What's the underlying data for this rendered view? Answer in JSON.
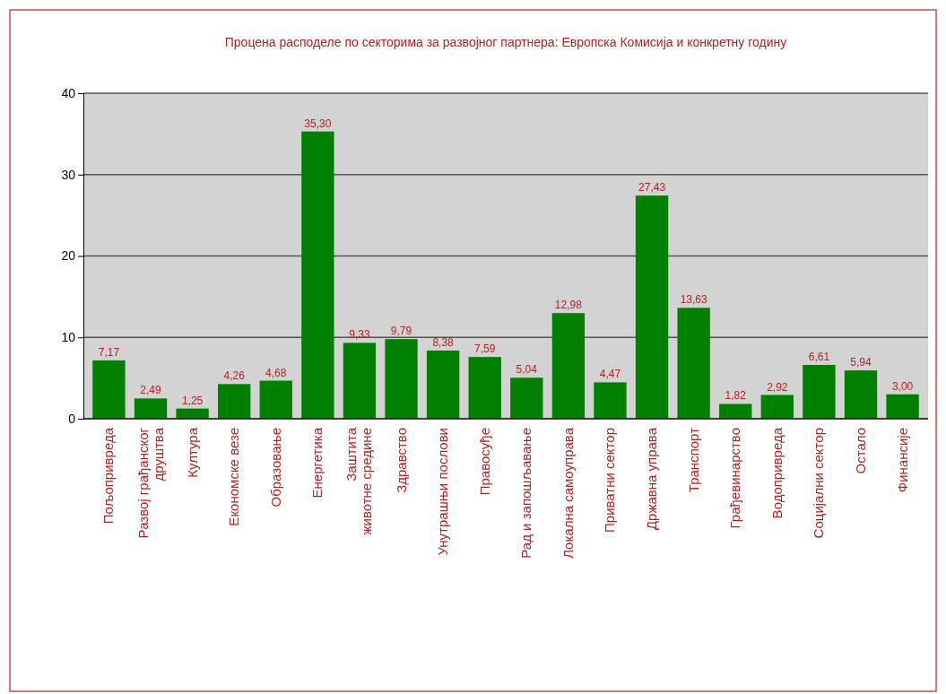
{
  "chart_data": {
    "type": "bar",
    "title": "Процена расподеле по секторима за развојног партнера: Европска Комисија и конкретну годину",
    "categories": [
      "Пољопривреда",
      "Развој грађанског\nдруштва",
      "Култура",
      "Економске везе",
      "Образовање",
      "Енергетика",
      "Заштита\nживотне средине",
      "Здравство",
      "Унутрашњи послови",
      "Правосуђе",
      "Рад и запошљавање",
      "Локална самоуправа",
      "Приватни сектор",
      "Државна управа",
      "Транспорт",
      "Грађевинарство",
      "Водопривреда",
      "Социјални сектор",
      "Остало",
      "Финансије"
    ],
    "values": [
      7.17,
      2.49,
      1.25,
      4.26,
      4.68,
      35.3,
      9.33,
      9.79,
      8.38,
      7.59,
      5.04,
      12.98,
      4.47,
      27.43,
      13.63,
      1.82,
      2.92,
      6.61,
      5.94,
      3.0
    ],
    "value_labels": [
      "7,17",
      "2,49",
      "1,25",
      "4,26",
      "4,68",
      "35,30",
      "9,33",
      "9,79",
      "8,38",
      "7,59",
      "5,04",
      "12,98",
      "4,47",
      "27,43",
      "13,63",
      "1,82",
      "2,92",
      "6,61",
      "5,94",
      "3,00"
    ],
    "color": "#008000",
    "ylim": [
      0,
      40
    ],
    "yticks": [
      0,
      10,
      20,
      30,
      40
    ],
    "grid": "y"
  }
}
